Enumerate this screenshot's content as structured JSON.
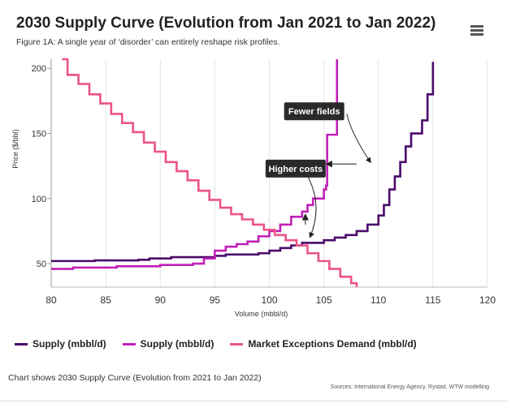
{
  "header": {
    "title": "2030 Supply Curve (Evolution from Jan 2021 to Jan 2022)",
    "subtitle": "Figure 1A: A single year of ‘disorder’ can entirely reshape risk profiles.",
    "menu_icon": "hamburger-menu-icon"
  },
  "footer": {
    "caption": "Chart shows 2030 Supply Curve (Evolution from 2021 to Jan 2022)",
    "sources": "Sources: International Energy Agency, Rystad, WTW modelling"
  },
  "chart_data": {
    "type": "line",
    "xlabel": "Volume (mbbl/d)",
    "ylabel": "Price ($/bbl)",
    "xlim": [
      80,
      120
    ],
    "ylim": [
      32,
      207
    ],
    "xticks": [
      80,
      85,
      90,
      95,
      100,
      105,
      110,
      115,
      120
    ],
    "yticks": [
      50,
      100,
      150,
      200
    ],
    "grid": "vertical",
    "legend_position": "bottom",
    "series": [
      {
        "name": "Supply (mbbl/d)",
        "color": "#4a0a6b",
        "points": [
          [
            80,
            52
          ],
          [
            84,
            52.5
          ],
          [
            88,
            53
          ],
          [
            89,
            54
          ],
          [
            91,
            55
          ],
          [
            95,
            56
          ],
          [
            96,
            57
          ],
          [
            99,
            58
          ],
          [
            100,
            60
          ],
          [
            101,
            62
          ],
          [
            102,
            64
          ],
          [
            103,
            66
          ],
          [
            105,
            68
          ],
          [
            106,
            70
          ],
          [
            107,
            72
          ],
          [
            108,
            75
          ],
          [
            109,
            80
          ],
          [
            110,
            87
          ],
          [
            110.5,
            95
          ],
          [
            111,
            107
          ],
          [
            111.5,
            117
          ],
          [
            112,
            128
          ],
          [
            112.5,
            140
          ],
          [
            113,
            150
          ],
          [
            114,
            160
          ],
          [
            114.5,
            180
          ],
          [
            115,
            193
          ],
          [
            115,
            205
          ]
        ]
      },
      {
        "name": "Supply (mbbl/d)",
        "color": "#c01fb8",
        "points": [
          [
            80,
            46
          ],
          [
            82,
            47
          ],
          [
            86,
            48
          ],
          [
            90,
            49
          ],
          [
            93,
            50
          ],
          [
            94,
            54
          ],
          [
            95,
            60
          ],
          [
            96,
            63
          ],
          [
            97,
            65
          ],
          [
            98,
            67
          ],
          [
            99,
            71
          ],
          [
            100,
            75
          ],
          [
            101,
            80
          ],
          [
            102,
            86
          ],
          [
            103,
            90
          ],
          [
            103.5,
            95
          ],
          [
            104,
            100
          ],
          [
            105,
            107
          ],
          [
            105.2,
            110
          ],
          [
            105.3,
            149
          ],
          [
            106.2,
            149
          ],
          [
            106.2,
            207
          ]
        ]
      },
      {
        "name": "Market Exceptions Demand (mbbl/d)",
        "color": "#ec5484",
        "points": [
          [
            81,
            207
          ],
          [
            81.5,
            195
          ],
          [
            82.5,
            188
          ],
          [
            83.5,
            180
          ],
          [
            84.5,
            173
          ],
          [
            85.5,
            165
          ],
          [
            86.5,
            158
          ],
          [
            87.5,
            151
          ],
          [
            88.5,
            143
          ],
          [
            89.5,
            136
          ],
          [
            90.5,
            128
          ],
          [
            91.5,
            121
          ],
          [
            92.5,
            114
          ],
          [
            93.5,
            106
          ],
          [
            94.5,
            99
          ],
          [
            95.5,
            93
          ],
          [
            96.5,
            88
          ],
          [
            97.5,
            84
          ],
          [
            98.5,
            80
          ],
          [
            99.5,
            76
          ],
          [
            100.5,
            72
          ],
          [
            101.5,
            68
          ],
          [
            102.5,
            64
          ],
          [
            103.5,
            58
          ],
          [
            104.5,
            52
          ],
          [
            105.5,
            46
          ],
          [
            106.5,
            40
          ],
          [
            107.5,
            35
          ],
          [
            108,
            32
          ]
        ]
      }
    ],
    "annotations": [
      {
        "text": "Fewer fields",
        "label_x": 105.6,
        "label_y": 167,
        "target_x": 109.3,
        "target_y": 126.5,
        "arrow_from_x": 108,
        "arrow_to_x": 105.2
      },
      {
        "text": "Higher costs",
        "label_x": 103.9,
        "label_y": 123,
        "target_x": 103.3,
        "target_y": 90,
        "arrow_to_y": 88
      }
    ]
  }
}
